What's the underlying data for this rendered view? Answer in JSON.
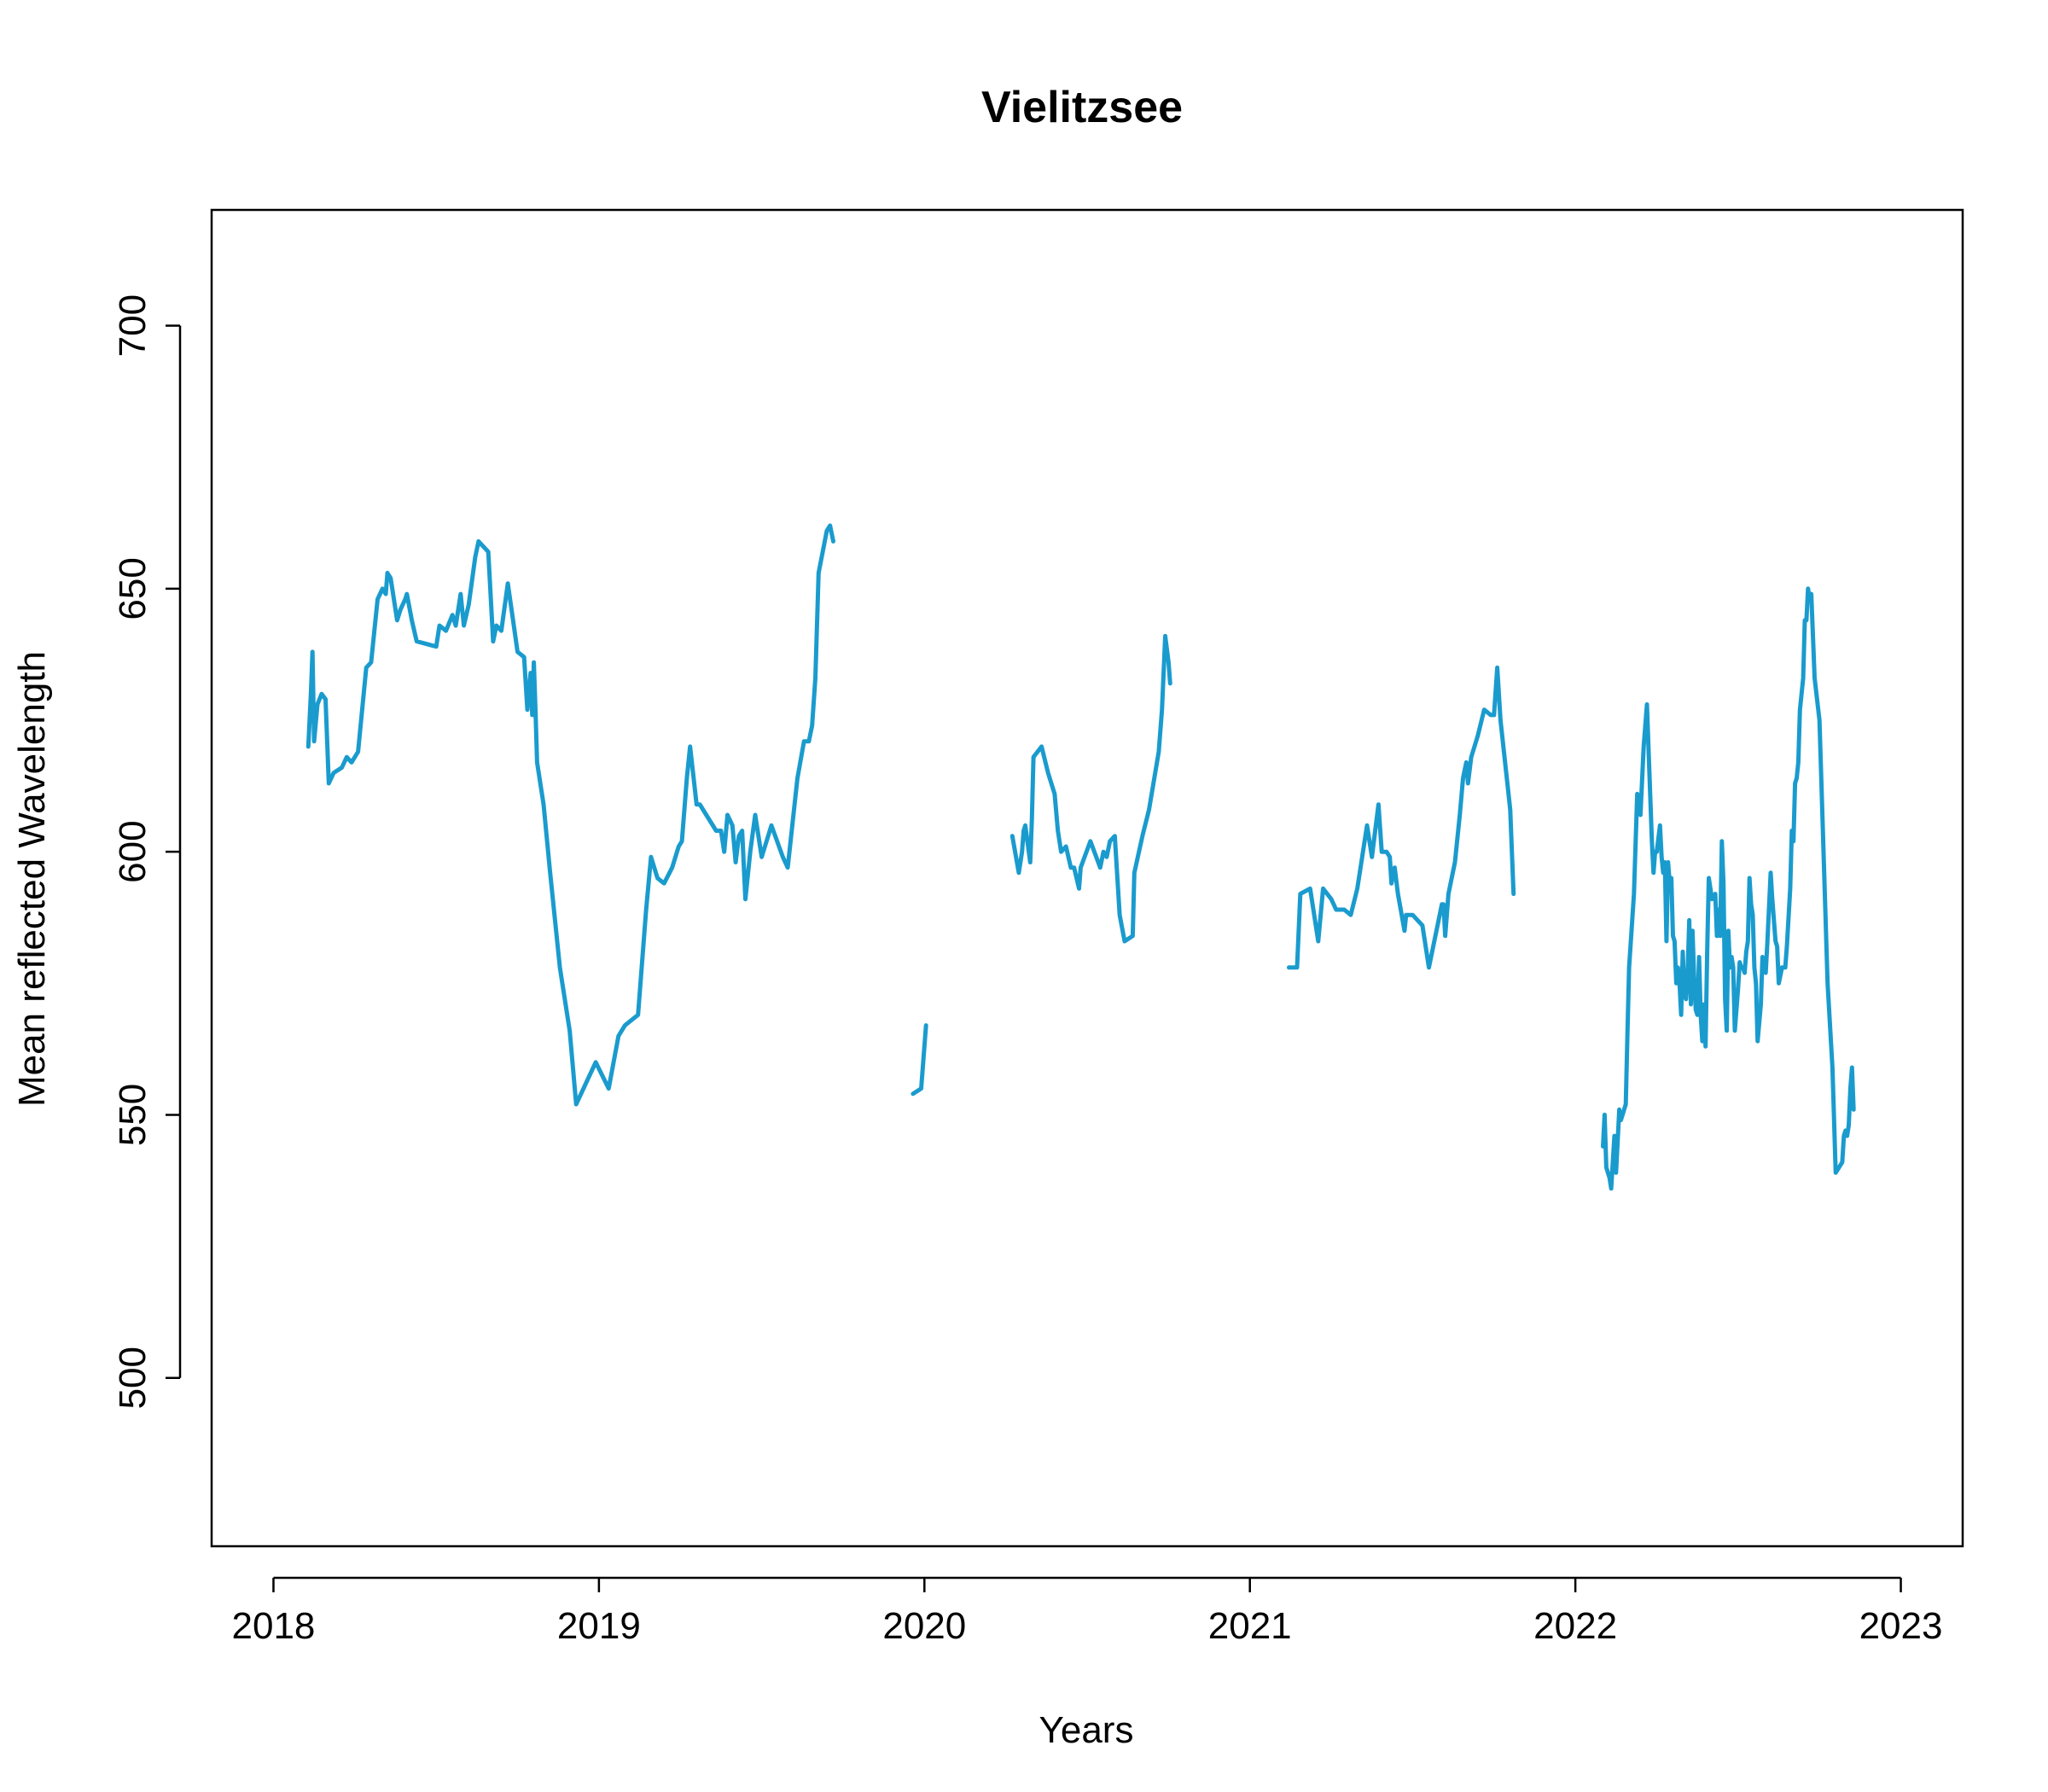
{
  "chart_data": {
    "type": "line",
    "title": "Vielitzsee",
    "xlabel": "Years",
    "ylabel": "Mean reflected Wavelength",
    "xlim": [
      2017.81,
      2023.19
    ],
    "ylim": [
      468,
      722
    ],
    "x_ticks": [
      2018,
      2019,
      2020,
      2021,
      2022,
      2023
    ],
    "x_tick_labels": [
      "2018",
      "2019",
      "2020",
      "2021",
      "2022",
      "2023"
    ],
    "y_ticks": [
      500,
      550,
      600,
      650,
      700
    ],
    "y_tick_labels": [
      "500",
      "550",
      "600",
      "650",
      "700"
    ],
    "grid": false,
    "color": "#1a9bce",
    "segments": [
      [
        [
          2018.107,
          620
        ],
        [
          2018.115,
          630
        ],
        [
          2018.12,
          638
        ],
        [
          2018.125,
          621
        ],
        [
          2018.135,
          628
        ],
        [
          2018.148,
          630
        ],
        [
          2018.16,
          629
        ],
        [
          2018.17,
          613
        ],
        [
          2018.185,
          615
        ],
        [
          2018.21,
          616
        ],
        [
          2018.225,
          618
        ],
        [
          2018.24,
          617
        ],
        [
          2018.26,
          619
        ],
        [
          2018.285,
          635
        ],
        [
          2018.3,
          636
        ],
        [
          2018.32,
          648
        ],
        [
          2018.335,
          650
        ],
        [
          2018.345,
          649
        ],
        [
          2018.35,
          653
        ],
        [
          2018.36,
          652
        ],
        [
          2018.38,
          644
        ],
        [
          2018.39,
          646
        ],
        [
          2018.405,
          648
        ],
        [
          2018.41,
          649
        ],
        [
          2018.425,
          644
        ],
        [
          2018.44,
          640
        ],
        [
          2018.5,
          639
        ],
        [
          2018.51,
          643
        ],
        [
          2018.53,
          642
        ],
        [
          2018.55,
          645
        ],
        [
          2018.56,
          643
        ],
        [
          2018.575,
          649
        ],
        [
          2018.585,
          643
        ],
        [
          2018.6,
          647
        ],
        [
          2018.62,
          656
        ],
        [
          2018.63,
          659
        ],
        [
          2018.66,
          657
        ],
        [
          2018.675,
          640
        ],
        [
          2018.685,
          643
        ],
        [
          2018.7,
          642
        ],
        [
          2018.72,
          651
        ],
        [
          2018.75,
          638
        ],
        [
          2018.77,
          637
        ],
        [
          2018.775,
          632
        ],
        [
          2018.78,
          627
        ],
        [
          2018.79,
          634
        ],
        [
          2018.795,
          626
        ],
        [
          2018.8,
          636
        ],
        [
          2018.805,
          627
        ],
        [
          2018.81,
          617
        ],
        [
          2018.83,
          609
        ],
        [
          2018.85,
          596
        ],
        [
          2018.88,
          578
        ],
        [
          2018.91,
          566
        ],
        [
          2018.93,
          552
        ],
        [
          2018.99,
          560
        ],
        [
          2019.03,
          555
        ],
        [
          2019.06,
          565
        ],
        [
          2019.08,
          567
        ],
        [
          2019.12,
          569
        ],
        [
          2019.145,
          589
        ],
        [
          2019.16,
          599
        ],
        [
          2019.18,
          595
        ],
        [
          2019.2,
          594
        ],
        [
          2019.225,
          597
        ],
        [
          2019.245,
          601
        ],
        [
          2019.255,
          602
        ],
        [
          2019.27,
          614
        ],
        [
          2019.28,
          620
        ],
        [
          2019.3,
          609
        ],
        [
          2019.31,
          609
        ],
        [
          2019.33,
          607
        ],
        [
          2019.36,
          604
        ],
        [
          2019.375,
          604
        ],
        [
          2019.385,
          600
        ],
        [
          2019.395,
          607
        ],
        [
          2019.41,
          605
        ],
        [
          2019.42,
          598
        ],
        [
          2019.43,
          603
        ],
        [
          2019.44,
          604
        ],
        [
          2019.45,
          591
        ],
        [
          2019.465,
          600
        ],
        [
          2019.48,
          607
        ],
        [
          2019.5,
          599
        ],
        [
          2019.53,
          605
        ],
        [
          2019.565,
          599
        ],
        [
          2019.58,
          597
        ],
        [
          2019.61,
          614
        ],
        [
          2019.63,
          621
        ],
        [
          2019.645,
          621
        ],
        [
          2019.655,
          624
        ],
        [
          2019.665,
          633
        ],
        [
          2019.675,
          653
        ],
        [
          2019.7,
          661
        ],
        [
          2019.71,
          662
        ],
        [
          2019.72,
          659
        ]
      ],
      [
        [
          2019.965,
          554
        ],
        [
          2019.99,
          555
        ],
        [
          2020.005,
          567
        ]
      ],
      [
        [
          2020.27,
          603
        ],
        [
          2020.29,
          596
        ],
        [
          2020.3,
          600
        ],
        [
          2020.305,
          604
        ],
        [
          2020.31,
          605
        ],
        [
          2020.325,
          598
        ],
        [
          2020.33,
          606
        ],
        [
          2020.335,
          618
        ],
        [
          2020.36,
          620
        ],
        [
          2020.38,
          615
        ],
        [
          2020.4,
          611
        ],
        [
          2020.41,
          604
        ],
        [
          2020.42,
          600
        ],
        [
          2020.435,
          601
        ],
        [
          2020.45,
          597
        ],
        [
          2020.46,
          597
        ],
        [
          2020.475,
          593
        ],
        [
          2020.48,
          597
        ],
        [
          2020.51,
          602
        ],
        [
          2020.54,
          597
        ],
        [
          2020.55,
          600
        ],
        [
          2020.56,
          599
        ],
        [
          2020.57,
          602
        ],
        [
          2020.585,
          603
        ],
        [
          2020.6,
          588
        ],
        [
          2020.615,
          583
        ],
        [
          2020.64,
          584
        ],
        [
          2020.645,
          596
        ],
        [
          2020.67,
          603
        ],
        [
          2020.69,
          608
        ],
        [
          2020.72,
          619
        ],
        [
          2020.73,
          627
        ],
        [
          2020.735,
          634
        ],
        [
          2020.74,
          641
        ],
        [
          2020.75,
          636
        ],
        [
          2020.755,
          632
        ]
      ],
      [
        [
          2021.12,
          578
        ],
        [
          2021.145,
          578
        ],
        [
          2021.155,
          592
        ],
        [
          2021.185,
          593
        ],
        [
          2021.2,
          587
        ],
        [
          2021.21,
          583
        ],
        [
          2021.225,
          593
        ],
        [
          2021.25,
          591
        ],
        [
          2021.265,
          589
        ],
        [
          2021.29,
          589
        ],
        [
          2021.31,
          588
        ],
        [
          2021.33,
          593
        ],
        [
          2021.36,
          605
        ],
        [
          2021.375,
          599
        ],
        [
          2021.395,
          609
        ],
        [
          2021.405,
          600
        ],
        [
          2021.42,
          600
        ],
        [
          2021.43,
          599
        ],
        [
          2021.435,
          594
        ],
        [
          2021.445,
          597
        ],
        [
          2021.455,
          592
        ],
        [
          2021.475,
          585
        ],
        [
          2021.48,
          588
        ],
        [
          2021.5,
          588
        ],
        [
          2021.53,
          586
        ],
        [
          2021.55,
          578
        ],
        [
          2021.59,
          590
        ],
        [
          2021.595,
          590
        ],
        [
          2021.6,
          584
        ],
        [
          2021.61,
          592
        ],
        [
          2021.63,
          598
        ],
        [
          2021.645,
          607
        ],
        [
          2021.655,
          614
        ],
        [
          2021.665,
          617
        ],
        [
          2021.67,
          613
        ],
        [
          2021.68,
          618
        ],
        [
          2021.7,
          622
        ],
        [
          2021.72,
          627
        ],
        [
          2021.74,
          626
        ],
        [
          2021.75,
          626
        ],
        [
          2021.76,
          635
        ],
        [
          2021.77,
          625
        ],
        [
          2021.8,
          608
        ],
        [
          2021.81,
          592
        ]
      ],
      [
        [
          2022.085,
          544
        ],
        [
          2022.09,
          550
        ],
        [
          2022.095,
          540
        ],
        [
          2022.105,
          538
        ],
        [
          2022.11,
          536
        ],
        [
          2022.12,
          546
        ],
        [
          2022.125,
          539
        ],
        [
          2022.13,
          545
        ],
        [
          2022.135,
          551
        ],
        [
          2022.14,
          549
        ],
        [
          2022.15,
          551
        ],
        [
          2022.155,
          552
        ],
        [
          2022.16,
          565
        ],
        [
          2022.165,
          578
        ],
        [
          2022.18,
          592
        ],
        [
          2022.19,
          611
        ],
        [
          2022.2,
          607
        ],
        [
          2022.21,
          620
        ],
        [
          2022.22,
          628
        ],
        [
          2022.23,
          611
        ],
        [
          2022.235,
          602
        ],
        [
          2022.24,
          596
        ],
        [
          2022.245,
          600
        ],
        [
          2022.25,
          600
        ],
        [
          2022.26,
          605
        ],
        [
          2022.265,
          599
        ],
        [
          2022.27,
          596
        ],
        [
          2022.275,
          598
        ],
        [
          2022.28,
          583
        ],
        [
          2022.285,
          598
        ],
        [
          2022.29,
          594
        ],
        [
          2022.295,
          595
        ],
        [
          2022.3,
          584
        ],
        [
          2022.305,
          583
        ],
        [
          2022.31,
          575
        ],
        [
          2022.315,
          578
        ],
        [
          2022.32,
          575
        ],
        [
          2022.325,
          569
        ],
        [
          2022.33,
          581
        ],
        [
          2022.335,
          573
        ],
        [
          2022.34,
          572
        ],
        [
          2022.345,
          577
        ],
        [
          2022.35,
          587
        ],
        [
          2022.355,
          571
        ],
        [
          2022.36,
          585
        ],
        [
          2022.365,
          576
        ],
        [
          2022.37,
          570
        ],
        [
          2022.375,
          569
        ],
        [
          2022.38,
          580
        ],
        [
          2022.385,
          569
        ],
        [
          2022.39,
          564
        ],
        [
          2022.395,
          571
        ],
        [
          2022.4,
          563
        ],
        [
          2022.405,
          581
        ],
        [
          2022.41,
          595
        ],
        [
          2022.42,
          591
        ],
        [
          2022.43,
          592
        ],
        [
          2022.435,
          584
        ],
        [
          2022.44,
          589
        ],
        [
          2022.445,
          584
        ],
        [
          2022.45,
          602
        ],
        [
          2022.455,
          594
        ],
        [
          2022.46,
          572
        ],
        [
          2022.465,
          566
        ],
        [
          2022.47,
          585
        ],
        [
          2022.475,
          578
        ],
        [
          2022.48,
          580
        ],
        [
          2022.485,
          578
        ],
        [
          2022.49,
          566
        ],
        [
          2022.5,
          574
        ],
        [
          2022.505,
          579
        ],
        [
          2022.51,
          578
        ],
        [
          2022.515,
          578
        ],
        [
          2022.52,
          577
        ],
        [
          2022.525,
          581
        ],
        [
          2022.53,
          583
        ],
        [
          2022.535,
          595
        ],
        [
          2022.54,
          590
        ],
        [
          2022.545,
          588
        ],
        [
          2022.55,
          578
        ],
        [
          2022.555,
          575
        ],
        [
          2022.56,
          564
        ],
        [
          2022.57,
          571
        ],
        [
          2022.575,
          580
        ],
        [
          2022.585,
          577
        ],
        [
          2022.59,
          583
        ],
        [
          2022.6,
          596
        ],
        [
          2022.605,
          591
        ],
        [
          2022.615,
          583
        ],
        [
          2022.62,
          582
        ],
        [
          2022.625,
          575
        ],
        [
          2022.635,
          578
        ],
        [
          2022.645,
          578
        ],
        [
          2022.65,
          582
        ],
        [
          2022.66,
          593
        ],
        [
          2022.665,
          604
        ],
        [
          2022.67,
          602
        ],
        [
          2022.675,
          613
        ],
        [
          2022.68,
          614
        ],
        [
          2022.685,
          617
        ],
        [
          2022.69,
          627
        ],
        [
          2022.695,
          630
        ],
        [
          2022.7,
          633
        ],
        [
          2022.705,
          644
        ],
        [
          2022.71,
          644
        ],
        [
          2022.715,
          650
        ],
        [
          2022.72,
          648
        ],
        [
          2022.725,
          649
        ],
        [
          2022.735,
          633
        ],
        [
          2022.75,
          625
        ],
        [
          2022.76,
          605
        ],
        [
          2022.775,
          575
        ],
        [
          2022.79,
          559
        ],
        [
          2022.8,
          539
        ],
        [
          2022.82,
          541
        ],
        [
          2022.825,
          546
        ],
        [
          2022.83,
          547
        ],
        [
          2022.835,
          546
        ],
        [
          2022.84,
          548
        ],
        [
          2022.845,
          555
        ],
        [
          2022.85,
          559
        ],
        [
          2022.855,
          551
        ]
      ]
    ]
  }
}
